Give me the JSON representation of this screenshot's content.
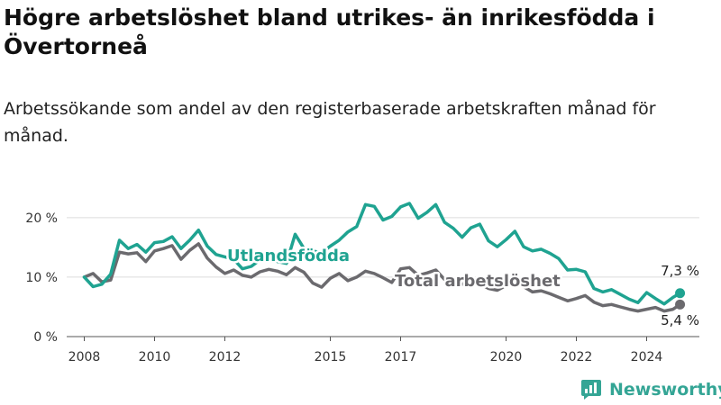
{
  "title": "Högre arbetslöshet bland utrikes- än inrikesfödda i Övertorneå",
  "subtitle": "Arbetssökande som andel av den registerbaserade arbetskraften månad för månad.",
  "brand": "Newsworthy",
  "colors": {
    "foreign": "#1fa391",
    "total": "#6b6a6e",
    "grid": "#dcdcdc",
    "axis": "#555555",
    "brand": "#34a595"
  },
  "chart_data": {
    "type": "line",
    "title": "Högre arbetslöshet bland utrikes- än inrikesfödda i Övertorneå",
    "subtitle": "Arbetssökande som andel av den registerbaserade arbetskraften månad för månad.",
    "xlabel": "",
    "ylabel": "",
    "ylim": [
      0,
      23
    ],
    "xlim": [
      2007.5,
      2025.5
    ],
    "grid": "horizontal",
    "y_ticks": [
      0,
      10,
      20
    ],
    "y_tick_labels": [
      "0 %",
      "10 %",
      "20 %"
    ],
    "x_ticks": [
      2008,
      2010,
      2012,
      2015,
      2017,
      2020,
      2022,
      2024
    ],
    "x_tick_labels": [
      "2008",
      "2010",
      "2012",
      "2015",
      "2017",
      "2020",
      "2022",
      "2024"
    ],
    "series": [
      {
        "name": "Utlandsfödda",
        "x": [
          2008.0,
          2008.25,
          2008.5,
          2008.75,
          2009.0,
          2009.25,
          2009.5,
          2009.75,
          2010.0,
          2010.25,
          2010.5,
          2010.75,
          2011.0,
          2011.25,
          2011.5,
          2011.75,
          2012.0,
          2012.25,
          2012.5,
          2012.75,
          2013.0,
          2013.25,
          2013.5,
          2013.75,
          2014.0,
          2014.25,
          2014.5,
          2014.75,
          2015.0,
          2015.25,
          2015.5,
          2015.75,
          2016.0,
          2016.25,
          2016.5,
          2016.75,
          2017.0,
          2017.25,
          2017.5,
          2017.75,
          2018.0,
          2018.25,
          2018.5,
          2018.75,
          2019.0,
          2019.25,
          2019.5,
          2019.75,
          2020.0,
          2020.25,
          2020.5,
          2020.75,
          2021.0,
          2021.25,
          2021.5,
          2021.75,
          2022.0,
          2022.25,
          2022.5,
          2022.75,
          2023.0,
          2023.25,
          2023.5,
          2023.75,
          2024.0,
          2024.25,
          2024.5,
          2024.75,
          2024.95
        ],
        "values": [
          10.0,
          8.4,
          8.8,
          10.5,
          16.2,
          14.8,
          15.5,
          14.2,
          15.8,
          16.0,
          16.8,
          14.8,
          16.2,
          17.9,
          15.2,
          13.8,
          13.4,
          13.0,
          11.4,
          11.8,
          12.9,
          13.4,
          12.6,
          12.3,
          17.2,
          14.8,
          14.4,
          14.1,
          15.2,
          16.2,
          17.6,
          18.5,
          22.2,
          21.9,
          19.6,
          20.2,
          21.8,
          22.4,
          19.9,
          20.9,
          22.2,
          19.2,
          18.2,
          16.7,
          18.3,
          18.9,
          16.1,
          15.1,
          16.3,
          17.7,
          15.1,
          14.4,
          14.7,
          14.0,
          13.1,
          11.2,
          11.3,
          10.9,
          8.1,
          7.5,
          7.9,
          7.1,
          6.3,
          5.7,
          7.4,
          6.4,
          5.5,
          6.6,
          7.3
        ]
      },
      {
        "name": "Total arbetslöshet",
        "x": [
          2008.0,
          2008.25,
          2008.5,
          2008.75,
          2009.0,
          2009.25,
          2009.5,
          2009.75,
          2010.0,
          2010.25,
          2010.5,
          2010.75,
          2011.0,
          2011.25,
          2011.5,
          2011.75,
          2012.0,
          2012.25,
          2012.5,
          2012.75,
          2013.0,
          2013.25,
          2013.5,
          2013.75,
          2014.0,
          2014.25,
          2014.5,
          2014.75,
          2015.0,
          2015.25,
          2015.5,
          2015.75,
          2016.0,
          2016.25,
          2016.5,
          2016.75,
          2017.0,
          2017.25,
          2017.5,
          2017.75,
          2018.0,
          2018.25,
          2018.5,
          2018.75,
          2019.0,
          2019.25,
          2019.5,
          2019.75,
          2020.0,
          2020.25,
          2020.5,
          2020.75,
          2021.0,
          2021.25,
          2021.5,
          2021.75,
          2022.0,
          2022.25,
          2022.5,
          2022.75,
          2023.0,
          2023.25,
          2023.5,
          2023.75,
          2024.0,
          2024.25,
          2024.5,
          2024.75,
          2024.95
        ],
        "values": [
          10.0,
          10.6,
          9.2,
          9.5,
          14.2,
          13.9,
          14.1,
          12.6,
          14.4,
          14.8,
          15.3,
          13.0,
          14.5,
          15.6,
          13.2,
          11.7,
          10.6,
          11.2,
          10.3,
          10.0,
          10.9,
          11.3,
          11.0,
          10.4,
          11.6,
          10.8,
          9.0,
          8.3,
          9.8,
          10.6,
          9.4,
          10.0,
          11.0,
          10.6,
          9.9,
          9.1,
          11.4,
          11.6,
          10.3,
          10.7,
          11.2,
          9.6,
          9.0,
          8.8,
          9.4,
          8.9,
          8.1,
          7.8,
          8.6,
          9.3,
          8.4,
          7.5,
          7.7,
          7.2,
          6.6,
          6.0,
          6.4,
          6.9,
          5.8,
          5.2,
          5.4,
          5.0,
          4.6,
          4.3,
          4.6,
          4.9,
          4.3,
          4.6,
          5.4
        ]
      }
    ],
    "annotations": [
      {
        "text": "Utlandsfödda",
        "series": "Utlandsfödda"
      },
      {
        "text": "Total arbetslöshet",
        "series": "Total arbetslöshet"
      },
      {
        "text": "7,3 %",
        "series": "Utlandsfödda",
        "value": 7.3
      },
      {
        "text": "5,4 %",
        "series": "Total arbetslöshet",
        "value": 5.4
      }
    ]
  }
}
